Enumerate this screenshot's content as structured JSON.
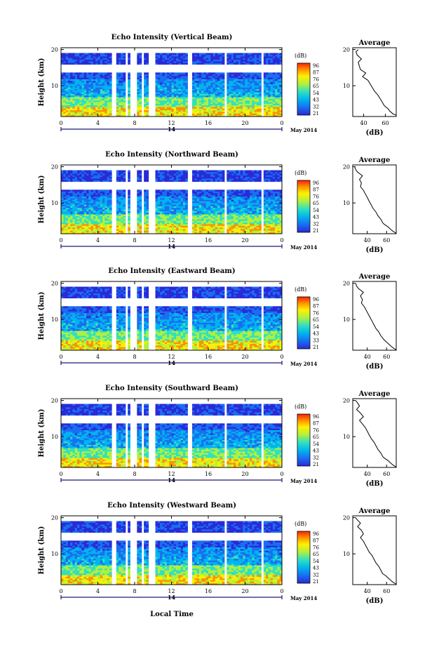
{
  "figure": {
    "xlabel": "Local Time",
    "date_month": "May 2014",
    "day_label": "14"
  },
  "chart_data": [
    {
      "type": "heatmap",
      "title": "Echo Intensity (Vertical Beam)",
      "ylabel": "Height (km)",
      "x_ticks": [
        "0",
        "4",
        "8",
        "12",
        "16",
        "20",
        "0"
      ],
      "y_ticks": [
        "10",
        "20"
      ],
      "xlim": [
        0,
        24
      ],
      "ylim": [
        1.5,
        20.5
      ],
      "colorbar": {
        "label": "(dB)",
        "ticks": [
          "96",
          "87",
          "76",
          "65",
          "54",
          "43",
          "32",
          "21"
        ],
        "range": [
          21,
          96
        ]
      },
      "profile": {
        "title": "Average",
        "xlabel": "(dB)",
        "x_ticks": [
          "40",
          "60"
        ],
        "y_ticks": [
          "10",
          "20"
        ],
        "xlim": [
          30,
          70
        ],
        "x": [
          35,
          33,
          34,
          38,
          35,
          36,
          37,
          42,
          39,
          44,
          46,
          48,
          50,
          53,
          55,
          57,
          59,
          61,
          63,
          64,
          66,
          67,
          69,
          70,
          70
        ],
        "y": [
          20,
          19.4,
          18.5,
          17.4,
          16.5,
          15.5,
          14.5,
          13.5,
          12.5,
          11.5,
          10.5,
          9.5,
          8.5,
          7.5,
          6.5,
          5.5,
          4.5,
          4,
          3.5,
          3,
          2.5,
          2.2,
          2,
          1.8,
          1.5
        ]
      }
    },
    {
      "type": "heatmap",
      "title": "Echo Intensity (Northward Beam)",
      "ylabel": "Height (km)",
      "x_ticks": [
        "0",
        "4",
        "8",
        "12",
        "16",
        "20",
        "0"
      ],
      "y_ticks": [
        "10",
        "20"
      ],
      "xlim": [
        0,
        24
      ],
      "ylim": [
        1.5,
        20.5
      ],
      "colorbar": {
        "label": "(dB)",
        "ticks": [
          "96",
          "87",
          "76",
          "65",
          "54",
          "43",
          "32",
          "21"
        ],
        "range": [
          21,
          96
        ]
      },
      "profile": {
        "title": "Average",
        "xlabel": "(dB)",
        "x_ticks": [
          "40",
          "60"
        ],
        "y_ticks": [
          "10",
          "20"
        ],
        "xlim": [
          25,
          70
        ],
        "x": [
          27,
          28,
          30,
          35,
          32,
          34,
          33,
          36,
          38,
          40,
          42,
          44,
          46,
          49,
          51,
          54,
          56,
          58,
          61,
          63,
          65,
          67,
          69,
          70
        ],
        "y": [
          20,
          19.2,
          18.5,
          17.5,
          16.5,
          15.5,
          14.5,
          13.5,
          12.5,
          11.5,
          10.5,
          9.5,
          8.5,
          7.5,
          6.5,
          5.5,
          4.5,
          4,
          3.5,
          3,
          2.5,
          2.1,
          1.8,
          1.5
        ]
      }
    },
    {
      "type": "heatmap",
      "title": "Echo Intensity (Eastward Beam)",
      "ylabel": "Height (km)",
      "x_ticks": [
        "0",
        "4",
        "8",
        "12",
        "16",
        "20",
        "0"
      ],
      "y_ticks": [
        "10",
        "20"
      ],
      "xlim": [
        0,
        24
      ],
      "ylim": [
        1.5,
        20.5
      ],
      "colorbar": {
        "label": "(dB)",
        "ticks": [
          "96",
          "87",
          "76",
          "65",
          "54",
          "43",
          "33",
          "21"
        ],
        "range": [
          21,
          96
        ]
      },
      "profile": {
        "title": "Average",
        "xlabel": "(dB)",
        "x_ticks": [
          "40",
          "60"
        ],
        "y_ticks": [
          "10",
          "20"
        ],
        "xlim": [
          25,
          70
        ],
        "x": [
          28,
          29,
          31,
          36,
          33,
          35,
          34,
          37,
          39,
          41,
          43,
          45,
          47,
          49,
          52,
          54,
          57,
          59,
          61,
          63,
          65,
          67,
          69,
          70
        ],
        "y": [
          20,
          19.2,
          18.5,
          17.5,
          16.5,
          15.5,
          14.5,
          13.5,
          12.5,
          11.5,
          10.5,
          9.5,
          8.5,
          7.5,
          6.5,
          5.5,
          4.5,
          4,
          3.5,
          3,
          2.5,
          2.1,
          1.8,
          1.5
        ]
      }
    },
    {
      "type": "heatmap",
      "title": "Echo Intensity (Southward Beam)",
      "ylabel": "Height (km)",
      "x_ticks": [
        "0",
        "4",
        "8",
        "12",
        "16",
        "20",
        "0"
      ],
      "y_ticks": [
        "10",
        "20"
      ],
      "xlim": [
        0,
        24
      ],
      "ylim": [
        1.5,
        20.5
      ],
      "colorbar": {
        "label": "(dB)",
        "ticks": [
          "96",
          "87",
          "76",
          "65",
          "54",
          "43",
          "32",
          "21"
        ],
        "range": [
          21,
          96
        ]
      },
      "profile": {
        "title": "Average",
        "xlabel": "(dB)",
        "x_ticks": [
          "40",
          "60"
        ],
        "y_ticks": [
          "10",
          "20"
        ],
        "xlim": [
          25,
          70
        ],
        "x": [
          28,
          30,
          32,
          29,
          33,
          36,
          32,
          35,
          38,
          40,
          42,
          44,
          47,
          49,
          51,
          54,
          56,
          58,
          61,
          63,
          65,
          67,
          69,
          70
        ],
        "y": [
          20,
          19.3,
          18.5,
          17.5,
          16.5,
          15.5,
          14.5,
          13.5,
          12.5,
          11.5,
          10.5,
          9.5,
          8.5,
          7.5,
          6.5,
          5.5,
          4.5,
          4,
          3.5,
          3,
          2.5,
          2.1,
          1.8,
          1.5
        ]
      }
    },
    {
      "type": "heatmap",
      "title": "Echo Intensity (Westward Beam)",
      "ylabel": "Height (km)",
      "x_ticks": [
        "0",
        "4",
        "8",
        "12",
        "16",
        "20",
        "0"
      ],
      "y_ticks": [
        "10",
        "20"
      ],
      "xlim": [
        0,
        24
      ],
      "ylim": [
        1.5,
        20.5
      ],
      "colorbar": {
        "label": "(dB)",
        "ticks": [
          "96",
          "87",
          "76",
          "65",
          "54",
          "43",
          "32",
          "21"
        ],
        "range": [
          21,
          96
        ]
      },
      "profile": {
        "title": "Average",
        "xlabel": "(dB)",
        "x_ticks": [
          "40",
          "60"
        ],
        "y_ticks": [
          "10",
          "20"
        ],
        "xlim": [
          25,
          70
        ],
        "x": [
          28,
          30,
          33,
          30,
          34,
          36,
          33,
          36,
          38,
          40,
          42,
          45,
          47,
          49,
          52,
          54,
          56,
          59,
          61,
          63,
          65,
          67,
          69,
          70
        ],
        "y": [
          20,
          19.3,
          18.5,
          17.5,
          16.5,
          15.5,
          14.5,
          13.5,
          12.5,
          11.5,
          10.5,
          9.5,
          8.5,
          7.5,
          6.5,
          5.5,
          4.5,
          4,
          3.5,
          3,
          2.5,
          2.1,
          1.8,
          1.5
        ]
      }
    }
  ]
}
